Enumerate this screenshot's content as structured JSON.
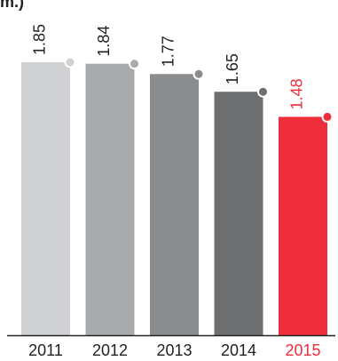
{
  "title_fragment": "m.)",
  "chart_data": {
    "type": "bar",
    "categories": [
      "2011",
      "2012",
      "2013",
      "2014",
      "2015"
    ],
    "values": [
      1.85,
      1.84,
      1.77,
      1.65,
      1.48
    ],
    "value_labels": [
      "1.85",
      "1.84",
      "1.77",
      "1.65",
      "1.48"
    ],
    "ylim": [
      0,
      1.85
    ],
    "grid": false,
    "legend": "none",
    "colors": {
      "bars": [
        "#d0d1d3",
        "#a9aaac",
        "#8a8c8e",
        "#6d6e70",
        "#ee2e3b"
      ],
      "dots": [
        "#d0d1d3",
        "#a9aaac",
        "#8a8c8e",
        "#6d6e70",
        "#ee2e3b"
      ],
      "labels": [
        "#222222",
        "#222222",
        "#222222",
        "#222222",
        "#ee2e3b"
      ],
      "axis": "#222222"
    }
  }
}
